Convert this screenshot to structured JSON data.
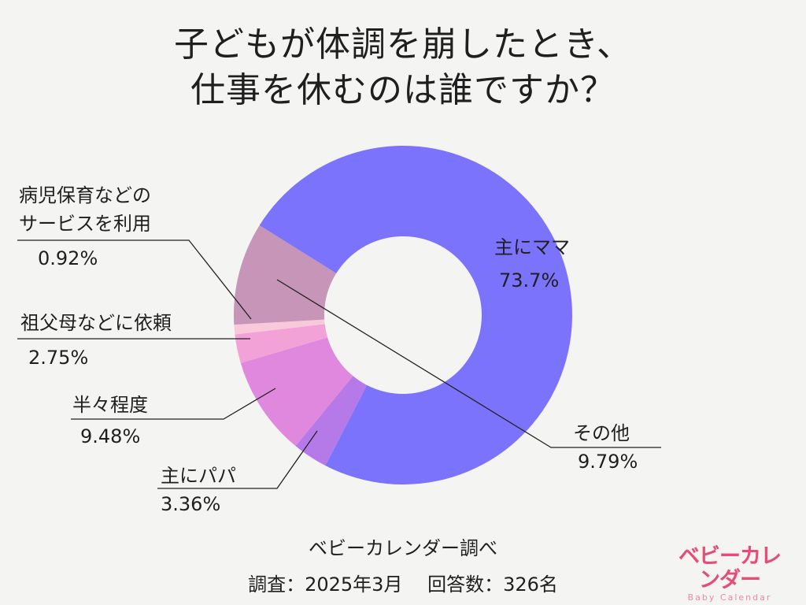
{
  "title": {
    "line1": "子どもが体調を崩したとき、",
    "line2": "仕事を休むのは誰ですか？"
  },
  "chart_data": {
    "type": "pie",
    "title": "子どもが体調を崩したとき、仕事を休むのは誰ですか？",
    "donut": true,
    "slices": [
      {
        "name": "主にママ",
        "value": 73.7,
        "display": "73.7%",
        "color": "#7b73fb",
        "label_lines": [
          "主にママ"
        ]
      },
      {
        "name": "主にパパ",
        "value": 3.36,
        "display": "3.36%",
        "color": "#b67ae8",
        "label_lines": [
          "主にパパ"
        ]
      },
      {
        "name": "半々程度",
        "value": 9.48,
        "display": "9.48%",
        "color": "#df88dd",
        "label_lines": [
          "半々程度"
        ]
      },
      {
        "name": "祖父母などに依頼",
        "value": 2.75,
        "display": "2.75%",
        "color": "#f2a2d6",
        "label_lines": [
          "祖父母などに依頼"
        ]
      },
      {
        "name": "病児保育などのサービスを利用",
        "value": 0.92,
        "display": "0.92%",
        "color": "#f7c9db",
        "label_lines": [
          "病児保育などの",
          "サービスを利用"
        ]
      },
      {
        "name": "その他",
        "value": 9.79,
        "display": "9.79%",
        "color": "#c695b8",
        "label_lines": [
          "その他"
        ]
      }
    ]
  },
  "footer": {
    "source": "ベビーカレンダー調べ",
    "survey": "調査：2025年3月　 回答数：326名"
  },
  "logo": {
    "main": "ベビーカレンダー",
    "sub": "Baby Calendar"
  }
}
